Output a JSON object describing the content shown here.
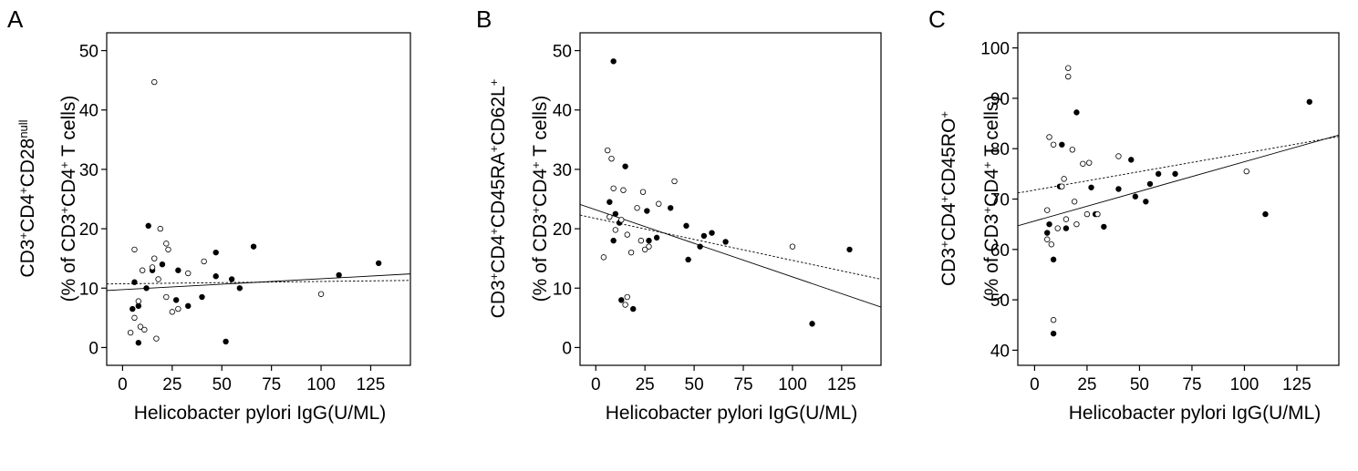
{
  "chart_data": [
    {
      "type": "scatter",
      "panel": "A",
      "xlabel": "Helicobacter pylori IgG(U/ML)",
      "ylabel_line1": [
        {
          "t": "CD3"
        },
        {
          "t": "+",
          "sup": true
        },
        {
          "t": "CD4"
        },
        {
          "t": "+",
          "sup": true
        },
        {
          "t": "CD28"
        },
        {
          "t": "null",
          "sup": true
        }
      ],
      "ylabel_line2": [
        {
          "t": "(% of CD3"
        },
        {
          "t": "+",
          "sup": true
        },
        {
          "t": "CD4"
        },
        {
          "t": "+",
          "sup": true
        },
        {
          "t": " T cells)"
        }
      ],
      "xlim": [
        -8,
        145
      ],
      "ylim": [
        -3,
        53
      ],
      "xticks": [
        0,
        25,
        50,
        75,
        100,
        125
      ],
      "yticks": [
        0,
        10,
        20,
        30,
        40,
        50
      ],
      "series": [
        {
          "style": "filled",
          "points": [
            [
              5,
              6.5
            ],
            [
              6,
              11
            ],
            [
              8,
              7
            ],
            [
              8,
              0.8
            ],
            [
              12,
              10
            ],
            [
              13,
              20.5
            ],
            [
              15,
              13
            ],
            [
              20,
              14
            ],
            [
              27,
              8
            ],
            [
              28,
              13
            ],
            [
              33,
              7
            ],
            [
              40,
              8.5
            ],
            [
              47,
              12
            ],
            [
              47,
              16
            ],
            [
              52,
              1
            ],
            [
              55,
              11.5
            ],
            [
              59,
              10
            ],
            [
              66,
              17
            ],
            [
              109,
              12.2
            ],
            [
              129,
              14.2
            ]
          ]
        },
        {
          "style": "open",
          "points": [
            [
              4,
              2.5
            ],
            [
              6,
              16.5
            ],
            [
              6,
              5
            ],
            [
              8,
              7.8
            ],
            [
              9,
              3.5
            ],
            [
              10,
              13
            ],
            [
              11,
              3
            ],
            [
              15,
              13.5
            ],
            [
              16,
              15
            ],
            [
              16,
              44.7
            ],
            [
              17,
              1.5
            ],
            [
              18,
              11.5
            ],
            [
              19,
              20
            ],
            [
              22,
              17.5
            ],
            [
              22,
              8.5
            ],
            [
              23,
              16.5
            ],
            [
              25,
              6
            ],
            [
              28,
              6.5
            ],
            [
              33,
              12.5
            ],
            [
              41,
              14.5
            ],
            [
              100,
              9
            ]
          ]
        }
      ],
      "fit_lines": [
        {
          "style": "solid",
          "x": [
            -8,
            145
          ],
          "y": [
            9.6,
            12.4
          ]
        },
        {
          "style": "dotted",
          "x": [
            -8,
            145
          ],
          "y": [
            10.7,
            11.3
          ]
        }
      ]
    },
    {
      "type": "scatter",
      "panel": "B",
      "xlabel": "Helicobacter pylori IgG(U/ML)",
      "ylabel_line1": [
        {
          "t": "CD3"
        },
        {
          "t": "+",
          "sup": true
        },
        {
          "t": "CD4"
        },
        {
          "t": "+",
          "sup": true
        },
        {
          "t": "CD45RA"
        },
        {
          "t": "+",
          "sup": true
        },
        {
          "t": "CD62L"
        },
        {
          "t": "+",
          "sup": true
        }
      ],
      "ylabel_line2": [
        {
          "t": "(% of CD3"
        },
        {
          "t": "+",
          "sup": true
        },
        {
          "t": "CD4"
        },
        {
          "t": "+",
          "sup": true
        },
        {
          "t": " T cells)"
        }
      ],
      "xlim": [
        -8,
        145
      ],
      "ylim": [
        -3,
        53
      ],
      "xticks": [
        0,
        25,
        50,
        75,
        100,
        125
      ],
      "yticks": [
        0,
        10,
        20,
        30,
        40,
        50
      ],
      "series": [
        {
          "style": "filled",
          "points": [
            [
              7,
              24.5
            ],
            [
              9,
              18
            ],
            [
              9,
              48.2
            ],
            [
              10,
              22.5
            ],
            [
              12,
              21
            ],
            [
              13,
              8
            ],
            [
              15,
              30.5
            ],
            [
              19,
              6.5
            ],
            [
              26,
              23
            ],
            [
              27,
              18
            ],
            [
              31,
              18.5
            ],
            [
              38,
              23.5
            ],
            [
              46,
              20.5
            ],
            [
              47,
              14.8
            ],
            [
              53,
              17
            ],
            [
              55,
              18.8
            ],
            [
              59,
              19.3
            ],
            [
              66,
              17.8
            ],
            [
              110,
              4
            ],
            [
              129,
              16.5
            ]
          ]
        },
        {
          "style": "open",
          "points": [
            [
              4,
              15.2
            ],
            [
              6,
              33.2
            ],
            [
              7,
              22
            ],
            [
              8,
              31.8
            ],
            [
              9,
              26.8
            ],
            [
              10,
              19.8
            ],
            [
              13,
              21.5
            ],
            [
              14,
              26.5
            ],
            [
              15,
              7.2
            ],
            [
              16,
              8.5
            ],
            [
              16,
              19
            ],
            [
              18,
              16
            ],
            [
              21,
              23.5
            ],
            [
              23,
              18
            ],
            [
              24,
              26.2
            ],
            [
              25,
              16.5
            ],
            [
              27,
              17
            ],
            [
              32,
              24.2
            ],
            [
              40,
              28
            ],
            [
              100,
              17
            ]
          ]
        }
      ],
      "fit_lines": [
        {
          "style": "solid",
          "x": [
            -8,
            145
          ],
          "y": [
            24.1,
            6.8
          ]
        },
        {
          "style": "dotted",
          "x": [
            -8,
            145
          ],
          "y": [
            22.3,
            11.5
          ]
        }
      ]
    },
    {
      "type": "scatter",
      "panel": "C",
      "xlabel": "Helicobacter pylori IgG(U/ML)",
      "ylabel_line1": [
        {
          "t": "CD3"
        },
        {
          "t": "+",
          "sup": true
        },
        {
          "t": "CD4"
        },
        {
          "t": "+",
          "sup": true
        },
        {
          "t": "CD45RO"
        },
        {
          "t": "+",
          "sup": true
        }
      ],
      "ylabel_line2": [
        {
          "t": "(% of CD3"
        },
        {
          "t": "+",
          "sup": true
        },
        {
          "t": "CD4"
        },
        {
          "t": "+",
          "sup": true
        },
        {
          "t": " T cells)"
        }
      ],
      "xlim": [
        -8,
        145
      ],
      "ylim": [
        37,
        103
      ],
      "xticks": [
        0,
        25,
        50,
        75,
        100,
        125
      ],
      "yticks": [
        40,
        50,
        60,
        70,
        80,
        90,
        100
      ],
      "series": [
        {
          "style": "filled",
          "points": [
            [
              6,
              63.3
            ],
            [
              7,
              65
            ],
            [
              9,
              58
            ],
            [
              9,
              43.3
            ],
            [
              12,
              72.5
            ],
            [
              13,
              80.8
            ],
            [
              15,
              64.2
            ],
            [
              20,
              87.2
            ],
            [
              27,
              72.3
            ],
            [
              29,
              67
            ],
            [
              33,
              64.5
            ],
            [
              40,
              72
            ],
            [
              46,
              77.8
            ],
            [
              48,
              70.5
            ],
            [
              53,
              69.5
            ],
            [
              55,
              73
            ],
            [
              59,
              75
            ],
            [
              67,
              75
            ],
            [
              110,
              67
            ],
            [
              131,
              89.3
            ]
          ]
        },
        {
          "style": "open",
          "points": [
            [
              6,
              67.8
            ],
            [
              6,
              62
            ],
            [
              7,
              82.3
            ],
            [
              8,
              61
            ],
            [
              9,
              46
            ],
            [
              9,
              80.8
            ],
            [
              11,
              64.2
            ],
            [
              13,
              72.5
            ],
            [
              14,
              74
            ],
            [
              15,
              66
            ],
            [
              16,
              94.3
            ],
            [
              16,
              96
            ],
            [
              18,
              79.8
            ],
            [
              19,
              69.5
            ],
            [
              20,
              65
            ],
            [
              23,
              77
            ],
            [
              25,
              67
            ],
            [
              26,
              77.2
            ],
            [
              30,
              67
            ],
            [
              40,
              78.5
            ],
            [
              101,
              75.5
            ]
          ]
        }
      ],
      "fit_lines": [
        {
          "style": "solid",
          "x": [
            -8,
            145
          ],
          "y": [
            64.7,
            82.7
          ]
        },
        {
          "style": "dotted",
          "x": [
            -8,
            145
          ],
          "y": [
            71.2,
            82.4
          ]
        }
      ]
    }
  ]
}
